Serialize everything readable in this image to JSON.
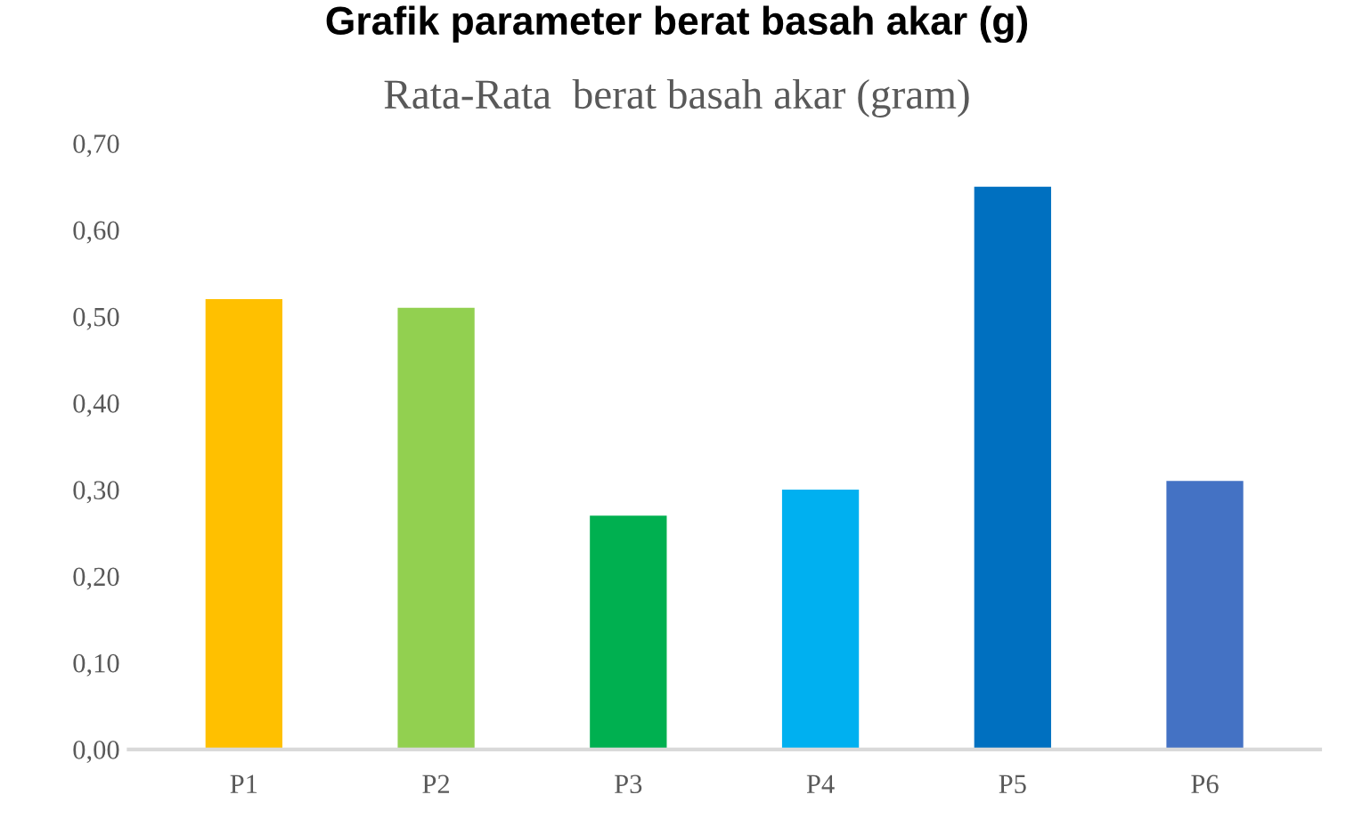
{
  "chart_data": {
    "type": "bar",
    "title": "Grafik parameter berat basah akar (g)",
    "subtitle": "Rata-Rata  berat basah akar (gram)",
    "categories": [
      "P1",
      "P2",
      "P3",
      "P4",
      "P5",
      "P6"
    ],
    "values": [
      0.52,
      0.51,
      0.27,
      0.3,
      0.65,
      0.31
    ],
    "colors": [
      "#ffc000",
      "#92d050",
      "#00b050",
      "#00b0f0",
      "#0070c0",
      "#4472c4"
    ],
    "ylim": [
      0,
      0.7
    ],
    "yticks": [
      {
        "value": 0,
        "label": "0,00"
      },
      {
        "value": 0.1,
        "label": "0,10"
      },
      {
        "value": 0.2,
        "label": "0,20"
      },
      {
        "value": 0.3,
        "label": "0,30"
      },
      {
        "value": 0.4,
        "label": "0,40"
      },
      {
        "value": 0.5,
        "label": "0,50"
      },
      {
        "value": 0.6,
        "label": "0,60"
      },
      {
        "value": 0.7,
        "label": "0,70"
      }
    ],
    "grid": false
  }
}
